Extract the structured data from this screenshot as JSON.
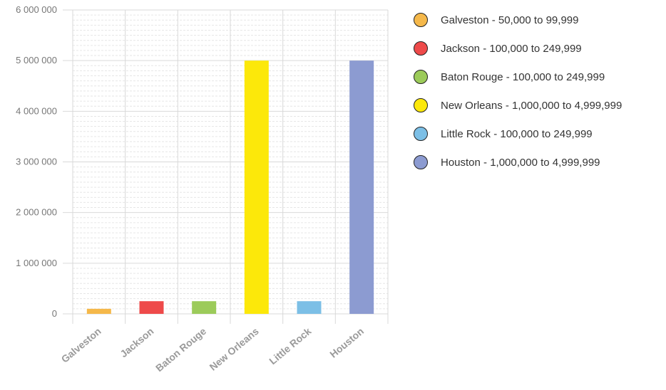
{
  "chart_data": {
    "type": "bar",
    "categories": [
      "Galveston",
      "Jackson",
      "Baton Rouge",
      "New Orleans",
      "Little Rock",
      "Houston"
    ],
    "values": [
      99999,
      249999,
      249999,
      4999999,
      249999,
      4999999
    ],
    "colors": [
      "#f5b84a",
      "#ee4a4a",
      "#9ccb5a",
      "#fce80a",
      "#7cbfe6",
      "#8c9bd1"
    ],
    "y_ticks": [
      "0",
      "1 000 000",
      "2 000 000",
      "3 000 000",
      "4 000 000",
      "5 000 000",
      "6 000 000"
    ],
    "ylim": [
      0,
      6000000
    ],
    "grid": true,
    "legend_position": "right",
    "legend": [
      "Galveston - 50,000 to 99,999",
      "Jackson - 100,000 to 249,999",
      "Baton Rouge - 100,000 to 249,999",
      "New Orleans - 1,000,000 to 4,999,999",
      "Little Rock - 100,000 to 249,999",
      "Houston - 1,000,000 to 4,999,999"
    ]
  }
}
